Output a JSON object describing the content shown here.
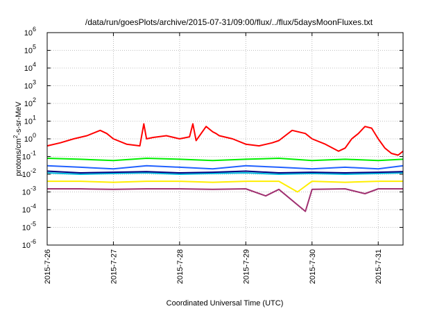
{
  "chart_data": {
    "type": "line",
    "title": "/data/run/goesPlots/archive/2015-07-31/09:00/flux/../flux/5daysMoonFluxes.txt",
    "xlabel": "Coordinated Universal Time (UTC)",
    "ylabel": {
      "base": "protons/cm",
      "sup": "2",
      "rest": "-s-sr-MeV"
    },
    "yscale": "log",
    "ylim": [
      1e-06,
      1000000.0
    ],
    "yticks": [
      {
        "base": "10",
        "exp": "6"
      },
      {
        "base": "10",
        "exp": "5"
      },
      {
        "base": "10",
        "exp": "4"
      },
      {
        "base": "10",
        "exp": "3"
      },
      {
        "base": "10",
        "exp": "2"
      },
      {
        "base": "10",
        "exp": "1"
      },
      {
        "base": "10",
        "exp": "0"
      },
      {
        "base": "10",
        "exp": "-1"
      },
      {
        "base": "10",
        "exp": "-2"
      },
      {
        "base": "10",
        "exp": "-3"
      },
      {
        "base": "10",
        "exp": "-4"
      },
      {
        "base": "10",
        "exp": "-5"
      },
      {
        "base": "10",
        "exp": "-6"
      }
    ],
    "xlim": [
      "2015-07-26T00:00",
      "2015-07-31T09:00"
    ],
    "xticks": [
      "2015-7-26",
      "2015-7-27",
      "2015-7-28",
      "2015-7-29",
      "2015-7-30",
      "2015-7-31"
    ],
    "grid": true,
    "series": [
      {
        "color": "#ff0000",
        "x": [
          0,
          0.2,
          0.4,
          0.6,
          0.8,
          0.9,
          1.0,
          1.2,
          1.4,
          1.46,
          1.5,
          1.6,
          1.8,
          2.0,
          2.15,
          2.2,
          2.25,
          2.4,
          2.5,
          2.55,
          2.6,
          2.8,
          3.0,
          3.2,
          3.4,
          3.5,
          3.7,
          3.9,
          4.0,
          4.2,
          4.4,
          4.5,
          4.6,
          4.7,
          4.8,
          4.9,
          5.0,
          5.1,
          5.2,
          5.3,
          5.375
        ],
        "y": [
          0.4,
          0.6,
          1.0,
          1.5,
          3.0,
          2.0,
          1.0,
          0.5,
          0.4,
          7.0,
          1.0,
          1.2,
          1.5,
          1.0,
          1.3,
          7.0,
          0.8,
          5.0,
          2.5,
          2.0,
          1.5,
          1.0,
          0.5,
          0.4,
          0.6,
          0.8,
          3.0,
          2.0,
          1.0,
          0.5,
          0.2,
          0.3,
          1.0,
          2.0,
          5.0,
          4.0,
          1.0,
          0.3,
          0.15,
          0.12,
          0.2
        ]
      },
      {
        "color": "#00ee00",
        "x": [
          0,
          0.5,
          1.0,
          1.5,
          2.0,
          2.5,
          3.0,
          3.5,
          4.0,
          4.5,
          5.0,
          5.375
        ],
        "y": [
          0.08,
          0.07,
          0.06,
          0.08,
          0.07,
          0.06,
          0.07,
          0.08,
          0.06,
          0.07,
          0.06,
          0.07
        ]
      },
      {
        "color": "#2060ff",
        "x": [
          0,
          0.5,
          1.0,
          1.5,
          2.0,
          2.5,
          3.0,
          3.5,
          4.0,
          4.5,
          5.0,
          5.375
        ],
        "y": [
          0.03,
          0.025,
          0.02,
          0.03,
          0.025,
          0.02,
          0.03,
          0.025,
          0.02,
          0.025,
          0.02,
          0.03
        ]
      },
      {
        "color": "#00bbdd",
        "x": [
          0,
          0.5,
          1.0,
          1.5,
          2.0,
          2.5,
          3.0,
          3.5,
          4.0,
          4.5,
          5.0,
          5.375
        ],
        "y": [
          0.012,
          0.01,
          0.011,
          0.012,
          0.01,
          0.011,
          0.012,
          0.01,
          0.011,
          0.01,
          0.011,
          0.012
        ]
      },
      {
        "color": "#000080",
        "x": [
          0,
          0.5,
          1.0,
          1.5,
          2.0,
          2.5,
          3.0,
          3.5,
          4.0,
          4.5,
          5.0,
          5.375
        ],
        "y": [
          0.015,
          0.012,
          0.013,
          0.014,
          0.012,
          0.013,
          0.015,
          0.012,
          0.013,
          0.012,
          0.013,
          0.014
        ]
      },
      {
        "color": "#ffee00",
        "x": [
          0,
          0.5,
          1.0,
          1.5,
          2.0,
          2.5,
          3.0,
          3.5,
          3.78,
          4.0,
          4.5,
          5.0,
          5.375
        ],
        "y": [
          0.004,
          0.004,
          0.0035,
          0.004,
          0.004,
          0.0035,
          0.004,
          0.004,
          0.001,
          0.004,
          0.0035,
          0.004,
          0.004
        ]
      },
      {
        "color": "#a03070",
        "x": [
          0,
          0.5,
          1.0,
          1.5,
          2.0,
          2.5,
          3.0,
          3.3,
          3.5,
          3.9,
          4.0,
          4.5,
          4.8,
          5.0,
          5.375
        ],
        "y": [
          0.0015,
          0.0015,
          0.0014,
          0.0015,
          0.0015,
          0.0014,
          0.0015,
          0.0006,
          0.0014,
          8e-05,
          0.0014,
          0.0015,
          0.0008,
          0.0015,
          0.0015
        ]
      }
    ]
  }
}
